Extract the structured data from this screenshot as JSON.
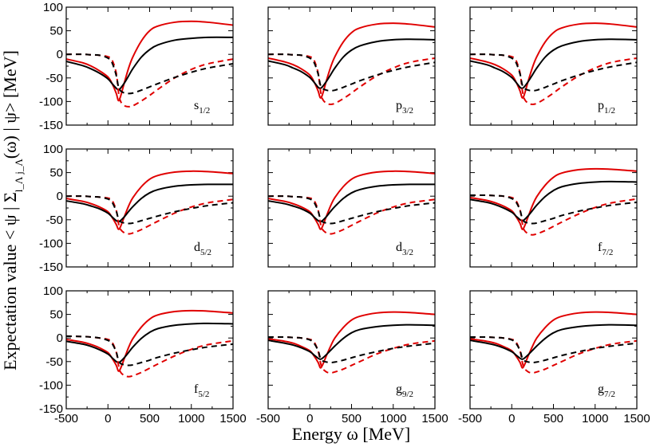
{
  "chart_data": {
    "type": "line",
    "xlabel": "Energy ω [MeV]",
    "ylabel": "Expectation value < ψ | Σ",
    "ylabel_sub": "l_Λ j_Λ",
    "ylabel_tail": "(ω) | ψ> [MeV]",
    "xlim": [
      -500,
      1500
    ],
    "ylim": [
      -150,
      100
    ],
    "xticks": [
      -500,
      0,
      500,
      1000,
      1500
    ],
    "yticks": [
      -150,
      -100,
      -50,
      0,
      50,
      100
    ],
    "grid": false,
    "series_styles": [
      {
        "color": "#e00000",
        "dash": "solid"
      },
      {
        "color": "#000000",
        "dash": "solid"
      },
      {
        "color": "#e00000",
        "dash": "dashed"
      },
      {
        "color": "#000000",
        "dash": "dashed"
      }
    ],
    "x": [
      -500,
      -300,
      -200,
      -100,
      0,
      50,
      100,
      125,
      150,
      200,
      250,
      300,
      400,
      500,
      600,
      800,
      1000,
      1200,
      1500
    ],
    "panels": [
      {
        "label": "s",
        "label_sub": "1/2",
        "series": [
          {
            "values": [
              -10,
              -18,
              -25,
              -35,
              -48,
              -62,
              -83,
              -98,
              -90,
              -58,
              -28,
              -5,
              28,
              50,
              60,
              68,
              70,
              68,
              62
            ]
          },
          {
            "values": [
              -15,
              -24,
              -31,
              -40,
              -52,
              -62,
              -72,
              -75,
              -72,
              -60,
              -45,
              -30,
              -6,
              10,
              20,
              30,
              34,
              36,
              36
            ]
          },
          {
            "values": [
              0,
              0,
              -1,
              -2,
              -5,
              -12,
              -40,
              -78,
              -99,
              -109,
              -111,
              -109,
              -99,
              -87,
              -74,
              -50,
              -32,
              -20,
              -10
            ]
          },
          {
            "values": [
              0,
              0,
              -1,
              -2,
              -8,
              -18,
              -45,
              -68,
              -77,
              -82,
              -83,
              -82,
              -76,
              -69,
              -62,
              -49,
              -38,
              -29,
              -20
            ]
          }
        ]
      },
      {
        "label": "p",
        "label_sub": "3/2",
        "series": [
          {
            "values": [
              -8,
              -16,
              -22,
              -31,
              -44,
              -58,
              -78,
              -92,
              -86,
              -55,
              -27,
              -5,
              26,
              46,
              56,
              64,
              66,
              64,
              58
            ]
          },
          {
            "values": [
              -14,
              -22,
              -29,
              -37,
              -49,
              -59,
              -70,
              -72,
              -69,
              -57,
              -43,
              -29,
              -6,
              9,
              18,
              27,
              31,
              32,
              31
            ]
          },
          {
            "values": [
              0,
              0,
              -1,
              -2,
              -5,
              -12,
              -40,
              -74,
              -94,
              -104,
              -106,
              -104,
              -94,
              -82,
              -69,
              -46,
              -29,
              -17,
              -8
            ]
          },
          {
            "values": [
              0,
              0,
              -1,
              -2,
              -8,
              -17,
              -42,
              -64,
              -72,
              -76,
              -77,
              -76,
              -70,
              -63,
              -56,
              -44,
              -34,
              -26,
              -17
            ]
          }
        ]
      },
      {
        "label": "p",
        "label_sub": "1/2",
        "series": [
          {
            "values": [
              -8,
              -16,
              -22,
              -31,
              -44,
              -58,
              -78,
              -92,
              -86,
              -55,
              -27,
              -5,
              26,
              46,
              56,
              64,
              66,
              64,
              58
            ]
          },
          {
            "values": [
              -14,
              -22,
              -29,
              -37,
              -49,
              -59,
              -70,
              -72,
              -69,
              -57,
              -43,
              -29,
              -6,
              9,
              18,
              27,
              31,
              32,
              31
            ]
          },
          {
            "values": [
              0,
              0,
              -1,
              -2,
              -5,
              -12,
              -40,
              -74,
              -94,
              -104,
              -106,
              -104,
              -94,
              -82,
              -69,
              -46,
              -29,
              -17,
              -8
            ]
          },
          {
            "values": [
              0,
              0,
              -1,
              -2,
              -8,
              -17,
              -42,
              -64,
              -72,
              -76,
              -77,
              -76,
              -70,
              -63,
              -56,
              -44,
              -34,
              -26,
              -17
            ]
          }
        ]
      },
      {
        "label": "d",
        "label_sub": "5/2",
        "series": [
          {
            "values": [
              -5,
              -11,
              -16,
              -23,
              -33,
              -45,
              -60,
              -70,
              -65,
              -42,
              -20,
              -3,
              20,
              36,
              44,
              51,
              53,
              52,
              48
            ]
          },
          {
            "values": [
              -10,
              -16,
              -21,
              -27,
              -36,
              -44,
              -52,
              -54,
              -52,
              -43,
              -32,
              -22,
              -5,
              7,
              14,
              21,
              24,
              25,
              25
            ]
          },
          {
            "values": [
              0,
              0,
              -1,
              -2,
              -4,
              -9,
              -30,
              -56,
              -70,
              -78,
              -80,
              -78,
              -71,
              -62,
              -53,
              -36,
              -23,
              -14,
              -7
            ]
          },
          {
            "values": [
              0,
              0,
              -1,
              -2,
              -6,
              -13,
              -32,
              -48,
              -54,
              -57,
              -58,
              -57,
              -52,
              -47,
              -42,
              -33,
              -26,
              -20,
              -14
            ]
          }
        ]
      },
      {
        "label": "d",
        "label_sub": "3/2",
        "series": [
          {
            "values": [
              -5,
              -11,
              -16,
              -23,
              -33,
              -45,
              -60,
              -70,
              -65,
              -42,
              -20,
              -3,
              20,
              36,
              44,
              51,
              53,
              52,
              48
            ]
          },
          {
            "values": [
              -10,
              -16,
              -21,
              -27,
              -36,
              -44,
              -52,
              -54,
              -52,
              -43,
              -32,
              -22,
              -5,
              7,
              14,
              21,
              24,
              25,
              25
            ]
          },
          {
            "values": [
              0,
              0,
              -1,
              -2,
              -4,
              -9,
              -30,
              -56,
              -70,
              -78,
              -80,
              -78,
              -71,
              -62,
              -53,
              -36,
              -23,
              -14,
              -7
            ]
          },
          {
            "values": [
              0,
              0,
              -1,
              -2,
              -6,
              -13,
              -32,
              -48,
              -54,
              -57,
              -58,
              -57,
              -52,
              -47,
              -42,
              -33,
              -26,
              -20,
              -14
            ]
          }
        ]
      },
      {
        "label": "f",
        "label_sub": "7/2",
        "series": [
          {
            "values": [
              -3,
              -9,
              -14,
              -21,
              -31,
              -43,
              -58,
              -70,
              -65,
              -42,
              -19,
              -1,
              23,
              40,
              49,
              56,
              58,
              57,
              53
            ]
          },
          {
            "values": [
              -7,
              -13,
              -18,
              -25,
              -34,
              -42,
              -50,
              -52,
              -50,
              -41,
              -30,
              -19,
              -1,
              12,
              20,
              27,
              30,
              31,
              30
            ]
          },
          {
            "values": [
              2,
              2,
              1,
              0,
              -3,
              -9,
              -30,
              -56,
              -72,
              -80,
              -82,
              -80,
              -73,
              -64,
              -55,
              -38,
              -24,
              -14,
              -6
            ]
          },
          {
            "values": [
              2,
              2,
              1,
              0,
              -5,
              -12,
              -30,
              -47,
              -54,
              -57,
              -58,
              -57,
              -52,
              -47,
              -41,
              -32,
              -25,
              -19,
              -13
            ]
          }
        ]
      },
      {
        "label": "f",
        "label_sub": "5/2",
        "series": [
          {
            "values": [
              -3,
              -9,
              -14,
              -21,
              -31,
              -43,
              -58,
              -70,
              -65,
              -42,
              -19,
              -1,
              23,
              40,
              49,
              56,
              58,
              57,
              53
            ]
          },
          {
            "values": [
              -7,
              -13,
              -18,
              -25,
              -34,
              -42,
              -50,
              -52,
              -50,
              -41,
              -30,
              -19,
              -1,
              12,
              20,
              27,
              30,
              31,
              30
            ]
          },
          {
            "values": [
              4,
              3,
              2,
              0,
              -3,
              -9,
              -30,
              -56,
              -72,
              -80,
              -82,
              -80,
              -73,
              -64,
              -55,
              -38,
              -24,
              -14,
              -6
            ]
          },
          {
            "values": [
              4,
              3,
              2,
              0,
              -5,
              -12,
              -30,
              -47,
              -54,
              -57,
              -58,
              -57,
              -52,
              -47,
              -41,
              -32,
              -25,
              -19,
              -13
            ]
          }
        ]
      },
      {
        "label": "g",
        "label_sub": "9/2",
        "series": [
          {
            "values": [
              -2,
              -7,
              -11,
              -18,
              -27,
              -38,
              -52,
              -63,
              -58,
              -37,
              -17,
              0,
              22,
              38,
              46,
              53,
              55,
              54,
              50
            ]
          },
          {
            "values": [
              -5,
              -11,
              -15,
              -21,
              -29,
              -36,
              -43,
              -45,
              -43,
              -35,
              -26,
              -17,
              -1,
              11,
              18,
              24,
              27,
              28,
              27
            ]
          },
          {
            "values": [
              2,
              2,
              1,
              0,
              -3,
              -8,
              -28,
              -50,
              -64,
              -72,
              -74,
              -72,
              -66,
              -58,
              -50,
              -34,
              -22,
              -13,
              -6
            ]
          },
          {
            "values": [
              2,
              2,
              1,
              0,
              -4,
              -11,
              -27,
              -42,
              -48,
              -51,
              -52,
              -51,
              -47,
              -42,
              -37,
              -29,
              -22,
              -17,
              -11
            ]
          }
        ]
      },
      {
        "label": "g",
        "label_sub": "7/2",
        "series": [
          {
            "values": [
              -2,
              -7,
              -11,
              -18,
              -27,
              -38,
              -52,
              -63,
              -58,
              -37,
              -17,
              0,
              22,
              38,
              46,
              53,
              55,
              54,
              50
            ]
          },
          {
            "values": [
              -5,
              -11,
              -15,
              -21,
              -29,
              -36,
              -43,
              -45,
              -43,
              -35,
              -26,
              -17,
              -1,
              11,
              18,
              24,
              27,
              28,
              27
            ]
          },
          {
            "values": [
              2,
              2,
              1,
              0,
              -3,
              -8,
              -28,
              -50,
              -64,
              -72,
              -74,
              -72,
              -66,
              -58,
              -50,
              -34,
              -22,
              -13,
              -6
            ]
          },
          {
            "values": [
              2,
              2,
              1,
              0,
              -4,
              -11,
              -27,
              -42,
              -48,
              -51,
              -52,
              -51,
              -47,
              -42,
              -37,
              -29,
              -22,
              -17,
              -11
            ]
          }
        ]
      }
    ]
  }
}
